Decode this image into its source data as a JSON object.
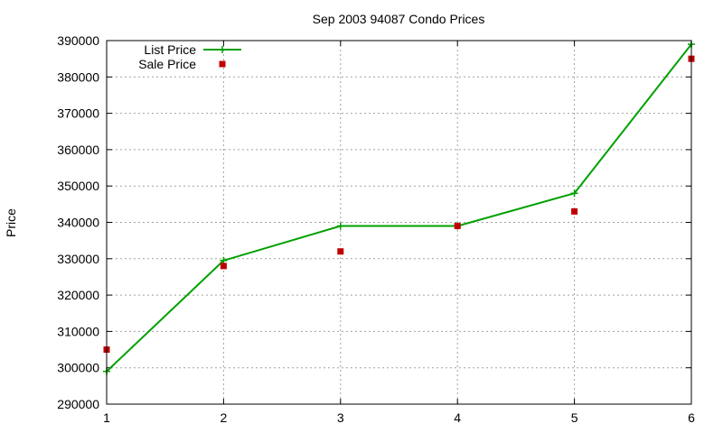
{
  "chart_data": {
    "type": "line",
    "title": "Sep 2003 94087 Condo Prices",
    "xlabel": "",
    "ylabel": "Price",
    "x": [
      1,
      2,
      3,
      4,
      5,
      6
    ],
    "xlim": [
      1,
      6
    ],
    "ylim": [
      290000,
      390000
    ],
    "x_ticks": [
      "1",
      "2",
      "3",
      "4",
      "5",
      "6"
    ],
    "y_ticks": [
      "290000",
      "300000",
      "310000",
      "320000",
      "330000",
      "340000",
      "350000",
      "360000",
      "370000",
      "380000",
      "390000"
    ],
    "grid": true,
    "legend_position": "top-left",
    "series": [
      {
        "name": "List Price",
        "style": "line-plus",
        "color": "#00a000",
        "values": [
          299000,
          329500,
          339000,
          339000,
          348000,
          389000
        ]
      },
      {
        "name": "Sale Price",
        "style": "square-points",
        "color": "#c00000",
        "values": [
          305000,
          328000,
          332000,
          339000,
          343000,
          385000
        ]
      }
    ]
  }
}
